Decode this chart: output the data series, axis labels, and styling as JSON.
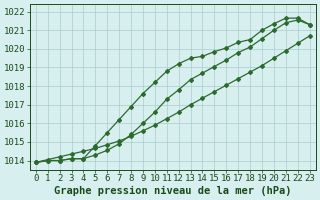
{
  "title": "Graphe pression niveau de la mer (hPa)",
  "xlabel_hours": [
    0,
    1,
    2,
    3,
    4,
    5,
    6,
    7,
    8,
    9,
    10,
    11,
    12,
    13,
    14,
    15,
    16,
    17,
    18,
    19,
    20,
    21,
    22,
    23
  ],
  "ylim": [
    1013.5,
    1022.4
  ],
  "yticks": [
    1014,
    1015,
    1016,
    1017,
    1018,
    1019,
    1020,
    1021,
    1022
  ],
  "line_straight": [
    1013.9,
    1014.05,
    1014.2,
    1014.35,
    1014.5,
    1014.65,
    1014.85,
    1015.05,
    1015.3,
    1015.6,
    1015.9,
    1016.25,
    1016.6,
    1017.0,
    1017.35,
    1017.7,
    1018.05,
    1018.4,
    1018.75,
    1019.1,
    1019.5,
    1019.9,
    1020.3,
    1020.7
  ],
  "line_upper": [
    1013.9,
    1014.0,
    1014.0,
    1014.1,
    1014.1,
    1014.8,
    1015.5,
    1016.2,
    1016.9,
    1017.6,
    1018.2,
    1018.8,
    1019.2,
    1019.5,
    1019.6,
    1019.85,
    1020.05,
    1020.35,
    1020.5,
    1021.0,
    1021.35,
    1021.65,
    1021.65,
    1021.3
  ],
  "line_lower": [
    1013.9,
    1014.0,
    1014.0,
    1014.1,
    1014.1,
    1014.3,
    1014.55,
    1014.9,
    1015.4,
    1016.0,
    1016.6,
    1017.3,
    1017.8,
    1018.35,
    1018.7,
    1019.05,
    1019.4,
    1019.8,
    1020.1,
    1020.55,
    1021.0,
    1021.4,
    1021.55,
    1021.3
  ],
  "line_color": "#2d6a2d",
  "bg_color": "#d8eff0",
  "grid_color": "#aacccc",
  "label_color": "#1a4a1a",
  "font_size_label": 7.5,
  "font_size_tick": 6.5,
  "marker": "D",
  "marker_size": 2.0,
  "linewidth": 0.9
}
